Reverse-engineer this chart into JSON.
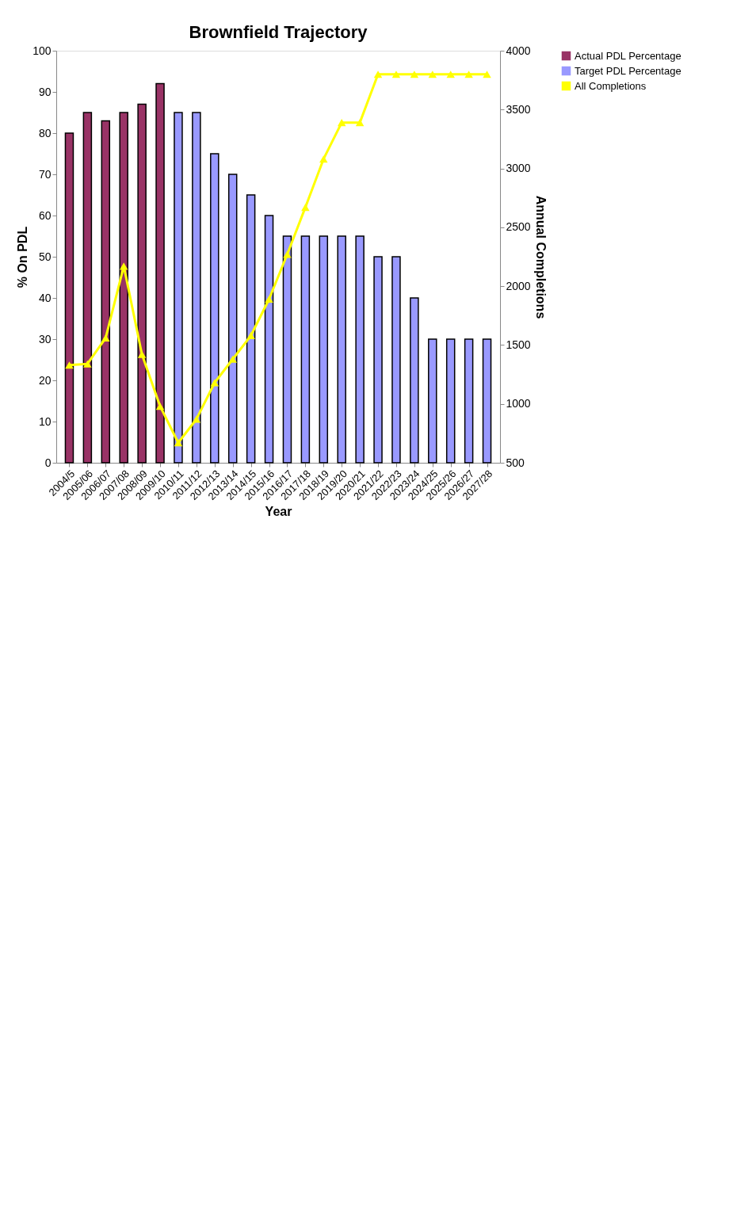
{
  "chart_data": {
    "type": "bar",
    "title": "Brownfield Trajectory",
    "xlabel": "Year",
    "ylabel": "% On PDL",
    "y2label": "Annual Completions",
    "categories": [
      "2004/5",
      "2005/06",
      "2006/07",
      "2007/08",
      "2008/09",
      "2009/10",
      "2010/11",
      "2011/12",
      "2012/13",
      "2013/14",
      "2014/15",
      "2015/16",
      "2016/17",
      "2017/18",
      "2018/19",
      "2019/20",
      "2020/21",
      "2021/22",
      "2022/23",
      "2023/24",
      "2024/25",
      "2025/26",
      "2026/27",
      "2027/28"
    ],
    "series": [
      {
        "name": "Actual PDL Percentage",
        "color": "#993366",
        "values": [
          80,
          85,
          83,
          85,
          87,
          92,
          null,
          null,
          null,
          null,
          null,
          null,
          null,
          null,
          null,
          null,
          null,
          null,
          null,
          null,
          null,
          null,
          null,
          null
        ]
      },
      {
        "name": "Target PDL Percentage",
        "color": "#9999ff",
        "values": [
          null,
          null,
          null,
          null,
          null,
          null,
          85,
          85,
          75,
          70,
          65,
          60,
          55,
          55,
          55,
          55,
          55,
          50,
          50,
          40,
          30,
          30,
          30,
          30
        ]
      },
      {
        "name": "All Completions",
        "color": "#ffff00",
        "type": "line",
        "axis": "y2",
        "marker": "triangle",
        "line_style": "solid",
        "values": [
          1330,
          1340,
          1560,
          2170,
          1420,
          980,
          670,
          870,
          1180,
          1380,
          1580,
          1890,
          2270,
          2670,
          3080,
          3390,
          3390,
          3800,
          3800,
          3800,
          3800,
          3800,
          3800,
          3800
        ]
      }
    ],
    "ylim": [
      0,
      100
    ],
    "yticks": [
      0,
      10,
      20,
      30,
      40,
      50,
      60,
      70,
      80,
      90,
      100
    ],
    "y2lim": [
      500,
      4000
    ],
    "y2ticks": [
      500,
      1000,
      1500,
      2000,
      2500,
      3000,
      3500,
      4000
    ],
    "grid": false,
    "legend": "right"
  }
}
